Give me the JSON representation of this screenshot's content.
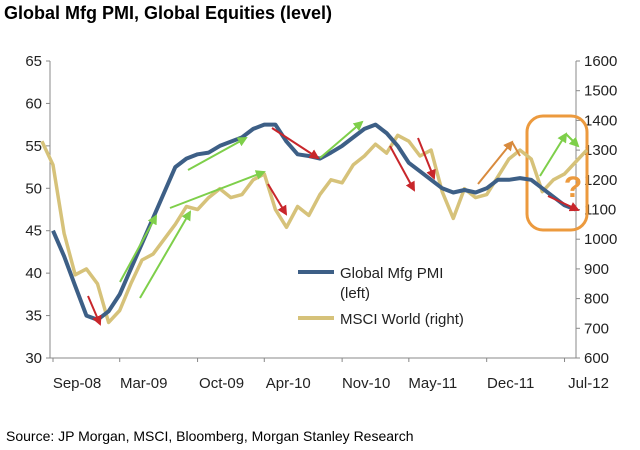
{
  "title": "Global Mfg PMI, Global Equities (level)",
  "source": "Source: JP Morgan, MSCI, Bloomberg, Morgan Stanley Research",
  "colors": {
    "pmi": "#3d5f86",
    "msci": "#d6c27a",
    "arrow_green": "#7ecf4a",
    "arrow_red": "#c8262b",
    "arrow_orange": "#d88a3d",
    "highlight": "#ec9a3e"
  },
  "chart_data": {
    "type": "line",
    "title": "Global Mfg PMI, Global Equities (level)",
    "x_tick_labels": [
      "Sep-08",
      "Mar-09",
      "Oct-09",
      "Apr-10",
      "Nov-10",
      "May-11",
      "Dec-11",
      "Jul-12"
    ],
    "x_tick_dates": [
      "2008-09",
      "2009-03",
      "2009-10",
      "2010-04",
      "2010-11",
      "2011-05",
      "2011-12",
      "2012-07"
    ],
    "y_left": {
      "ticks": [
        "30",
        "35",
        "40",
        "45",
        "50",
        "55",
        "60",
        "65"
      ],
      "range": [
        30,
        65
      ]
    },
    "y_right": {
      "ticks": [
        "600",
        "700",
        "800",
        "900",
        "1000",
        "1100",
        "1200",
        "1300",
        "1400",
        "1500",
        "1600"
      ],
      "range": [
        600,
        1600
      ]
    },
    "series": [
      {
        "name": "Global Mfg PMI (left)",
        "axis": "left",
        "points": [
          [
            "2008-09",
            45.0
          ],
          [
            "2008-10",
            42.0
          ],
          [
            "2008-11",
            38.5
          ],
          [
            "2008-12",
            35.0
          ],
          [
            "2009-01",
            34.5
          ],
          [
            "2009-02",
            35.5
          ],
          [
            "2009-03",
            37.5
          ],
          [
            "2009-04",
            40.5
          ],
          [
            "2009-05",
            43.5
          ],
          [
            "2009-06",
            46.5
          ],
          [
            "2009-07",
            49.5
          ],
          [
            "2009-08",
            52.5
          ],
          [
            "2009-09",
            53.5
          ],
          [
            "2009-10",
            54.0
          ],
          [
            "2009-11",
            54.2
          ],
          [
            "2009-12",
            55.0
          ],
          [
            "2010-01",
            55.5
          ],
          [
            "2010-02",
            56.0
          ],
          [
            "2010-03",
            57.0
          ],
          [
            "2010-04",
            57.5
          ],
          [
            "2010-05",
            57.5
          ],
          [
            "2010-06",
            55.5
          ],
          [
            "2010-07",
            54.0
          ],
          [
            "2010-08",
            53.8
          ],
          [
            "2010-09",
            53.5
          ],
          [
            "2010-10",
            54.2
          ],
          [
            "2010-11",
            55.0
          ],
          [
            "2010-12",
            56.0
          ],
          [
            "2011-01",
            57.0
          ],
          [
            "2011-02",
            57.5
          ],
          [
            "2011-03",
            56.5
          ],
          [
            "2011-04",
            55.0
          ],
          [
            "2011-05",
            53.0
          ],
          [
            "2011-06",
            52.0
          ],
          [
            "2011-07",
            51.0
          ],
          [
            "2011-08",
            50.0
          ],
          [
            "2011-09",
            49.5
          ],
          [
            "2011-10",
            49.8
          ],
          [
            "2011-11",
            49.5
          ],
          [
            "2011-12",
            50.0
          ],
          [
            "2012-01",
            51.0
          ],
          [
            "2012-02",
            51.0
          ],
          [
            "2012-03",
            51.2
          ],
          [
            "2012-04",
            51.0
          ],
          [
            "2012-05",
            50.0
          ],
          [
            "2012-06",
            49.0
          ],
          [
            "2012-07",
            48.0
          ],
          [
            "2012-08",
            47.5
          ]
        ]
      },
      {
        "name": "MSCI World (right)",
        "axis": "right",
        "points": [
          [
            "2008-08",
            1330
          ],
          [
            "2008-09",
            1250
          ],
          [
            "2008-10",
            1020
          ],
          [
            "2008-11",
            880
          ],
          [
            "2008-12",
            900
          ],
          [
            "2009-01",
            850
          ],
          [
            "2009-02",
            720
          ],
          [
            "2009-03",
            760
          ],
          [
            "2009-04",
            850
          ],
          [
            "2009-05",
            930
          ],
          [
            "2009-06",
            950
          ],
          [
            "2009-07",
            1000
          ],
          [
            "2009-08",
            1050
          ],
          [
            "2009-09",
            1110
          ],
          [
            "2009-10",
            1100
          ],
          [
            "2009-11",
            1140
          ],
          [
            "2009-12",
            1170
          ],
          [
            "2010-01",
            1140
          ],
          [
            "2010-02",
            1150
          ],
          [
            "2010-03",
            1200
          ],
          [
            "2010-04",
            1220
          ],
          [
            "2010-05",
            1100
          ],
          [
            "2010-06",
            1040
          ],
          [
            "2010-07",
            1110
          ],
          [
            "2010-08",
            1080
          ],
          [
            "2010-09",
            1150
          ],
          [
            "2010-10",
            1200
          ],
          [
            "2010-11",
            1190
          ],
          [
            "2010-12",
            1250
          ],
          [
            "2011-01",
            1280
          ],
          [
            "2011-02",
            1320
          ],
          [
            "2011-03",
            1290
          ],
          [
            "2011-04",
            1350
          ],
          [
            "2011-05",
            1330
          ],
          [
            "2011-06",
            1280
          ],
          [
            "2011-07",
            1300
          ],
          [
            "2011-08",
            1160
          ],
          [
            "2011-09",
            1070
          ],
          [
            "2011-10",
            1170
          ],
          [
            "2011-11",
            1140
          ],
          [
            "2011-12",
            1150
          ],
          [
            "2012-01",
            1210
          ],
          [
            "2012-02",
            1270
          ],
          [
            "2012-03",
            1300
          ],
          [
            "2012-04",
            1270
          ],
          [
            "2012-05",
            1160
          ],
          [
            "2012-06",
            1200
          ],
          [
            "2012-07",
            1220
          ],
          [
            "2012-08",
            1260
          ],
          [
            "2012-09",
            1300
          ]
        ]
      }
    ],
    "legend": [
      "Global Mfg PMI",
      "(left)",
      "MSCI World (right)"
    ],
    "legend_position": "center-right",
    "annotation": "?",
    "grid": false
  }
}
